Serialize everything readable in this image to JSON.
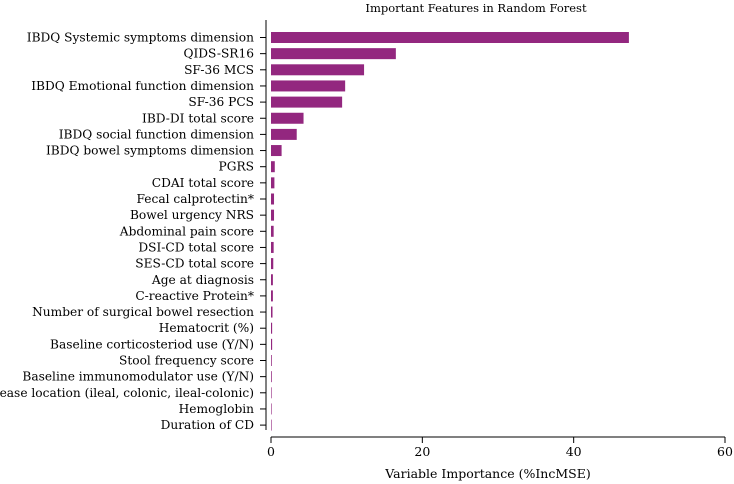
{
  "chart_data": {
    "type": "bar",
    "orientation": "horizontal",
    "title": "Important Features in Random Forest",
    "xlabel": "Variable Importance (%IncMSE)",
    "ylabel": "",
    "xlim": [
      0,
      60
    ],
    "xticks": [
      0,
      20,
      40,
      60
    ],
    "bar_color": "#93277f",
    "categories": [
      "IBDQ Systemic symptoms dimension",
      "QIDS-SR16",
      "SF-36 MCS",
      "IBDQ Emotional function dimension",
      "SF-36 PCS",
      "IBD-DI total score",
      "IBDQ social function dimension",
      "IBDQ bowel symptoms dimension",
      "PGRS",
      "CDAI total score",
      "Fecal calprotectin*",
      "Bowel urgency NRS",
      "Abdominal pain score",
      "DSI-CD total score",
      "SES-CD total score",
      "Age at diagnosis",
      "C-reactive Protein*",
      "Number of surgical bowel resection",
      "Hematocrit (%)",
      "Baseline corticosteriod use (Y/N)",
      "Stool frequency score",
      "Baseline immunomodulator use (Y/N)",
      "Disease location (ileal, colonic, ileal-colonic)",
      "Hemoglobin",
      "Duration of CD"
    ],
    "values": [
      47.3,
      16.5,
      12.3,
      9.8,
      9.4,
      4.3,
      3.4,
      1.4,
      0.5,
      0.45,
      0.4,
      0.4,
      0.35,
      0.35,
      0.3,
      0.25,
      0.25,
      0.2,
      0.15,
      0.15,
      0.1,
      0.1,
      0.05,
      0.05,
      0.05
    ]
  }
}
